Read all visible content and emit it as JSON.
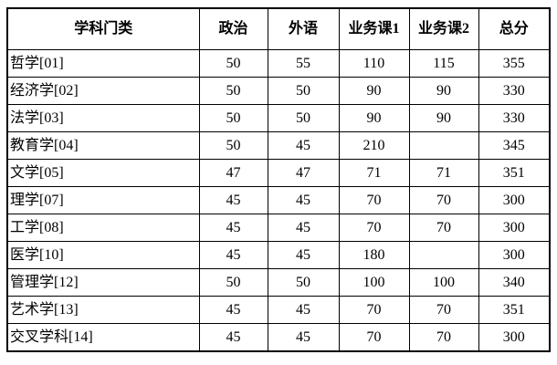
{
  "table": {
    "columns": [
      {
        "key": "category",
        "label": "学科门类"
      },
      {
        "key": "politics",
        "label": "政治"
      },
      {
        "key": "foreign",
        "label": "外语"
      },
      {
        "key": "course1",
        "label": "业务课1"
      },
      {
        "key": "course2",
        "label": "业务课2"
      },
      {
        "key": "total",
        "label": "总分"
      }
    ],
    "rows": [
      {
        "cells": [
          "哲学[01]",
          "50",
          "55",
          "110",
          "115",
          "355"
        ]
      },
      {
        "cells": [
          "经济学[02]",
          "50",
          "50",
          "90",
          "90",
          "330"
        ]
      },
      {
        "cells": [
          "法学[03]",
          "50",
          "50",
          "90",
          "90",
          "330"
        ]
      },
      {
        "cells": [
          "教育学[04]",
          "50",
          "45",
          "210",
          "",
          "345"
        ]
      },
      {
        "cells": [
          "文学[05]",
          "47",
          "47",
          "71",
          "71",
          "351"
        ]
      },
      {
        "cells": [
          "理学[07]",
          "45",
          "45",
          "70",
          "70",
          "300"
        ]
      },
      {
        "cells": [
          "工学[08]",
          "45",
          "45",
          "70",
          "70",
          "300"
        ]
      },
      {
        "cells": [
          "医学[10]",
          "45",
          "45",
          "180",
          "",
          "300"
        ]
      },
      {
        "cells": [
          "管理学[12]",
          "50",
          "50",
          "100",
          "100",
          "340"
        ]
      },
      {
        "cells": [
          "艺术学[13]",
          "45",
          "45",
          "70",
          "70",
          "351"
        ]
      },
      {
        "cells": [
          "交叉学科[14]",
          "45",
          "45",
          "70",
          "70",
          "300"
        ]
      }
    ],
    "colors": {
      "border": "#000000",
      "background": "#ffffff",
      "text": "#000000"
    }
  },
  "chart_data": {
    "type": "table",
    "title": "",
    "columns": [
      "学科门类",
      "政治",
      "外语",
      "业务课1",
      "业务课2",
      "总分"
    ],
    "rows": [
      [
        "哲学[01]",
        50,
        55,
        110,
        115,
        355
      ],
      [
        "经济学[02]",
        50,
        50,
        90,
        90,
        330
      ],
      [
        "法学[03]",
        50,
        50,
        90,
        90,
        330
      ],
      [
        "教育学[04]",
        50,
        45,
        210,
        null,
        345
      ],
      [
        "文学[05]",
        47,
        47,
        71,
        71,
        351
      ],
      [
        "理学[07]",
        45,
        45,
        70,
        70,
        300
      ],
      [
        "工学[08]",
        45,
        45,
        70,
        70,
        300
      ],
      [
        "医学[10]",
        45,
        45,
        180,
        null,
        300
      ],
      [
        "管理学[12]",
        50,
        50,
        100,
        100,
        340
      ],
      [
        "艺术学[13]",
        45,
        45,
        70,
        70,
        351
      ],
      [
        "交叉学科[14]",
        45,
        45,
        70,
        70,
        300
      ]
    ]
  }
}
